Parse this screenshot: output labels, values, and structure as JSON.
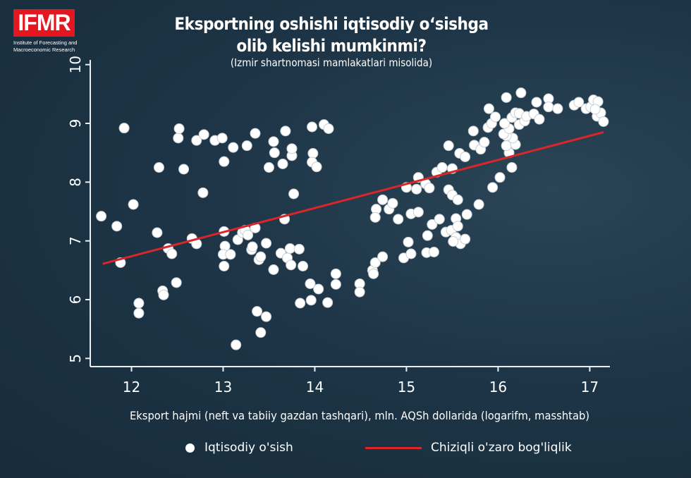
{
  "logo": {
    "text": "IFMR",
    "subtitle_line1": "Institute of Forecasting and",
    "subtitle_line2": "Macroeconomic Research",
    "color": "#e4161f"
  },
  "chart_data": {
    "type": "scatter",
    "title_line1": "Eksportning oshishi iqtisodiy o‘sishga",
    "title_line2": "olib kelishi mumkinmi?",
    "subtitle": "(Izmir shartnomasi mamlakatlari misolida)",
    "xlabel": "Eksport hajmi (neft va tabiiy gazdan tashqari), mln. AQSh dollarida (logarifm, masshtab)",
    "ylabel": "",
    "xlim": [
      11.55,
      17.22
    ],
    "ylim": [
      4.86,
      10.08
    ],
    "xticks": [
      "12",
      "13",
      "14",
      "15",
      "16",
      "17"
    ],
    "yticks": [
      "5",
      "6",
      "7",
      "8",
      "9",
      "10"
    ],
    "grid": false,
    "legend": {
      "placement": "bottom",
      "entries": [
        "Iqtisodiy o'sish",
        "Chiziqli o'zaro bog'liqlik"
      ]
    },
    "series": [
      {
        "name": "Iqtisodiy o'sish",
        "type": "scatter",
        "color": "#ffffff",
        "points": [
          [
            11.67,
            7.42
          ],
          [
            11.84,
            7.25
          ],
          [
            11.88,
            6.63
          ],
          [
            11.92,
            8.92
          ],
          [
            12.02,
            7.62
          ],
          [
            12.08,
            5.94
          ],
          [
            12.08,
            5.77
          ],
          [
            12.28,
            7.14
          ],
          [
            12.3,
            8.25
          ],
          [
            12.34,
            6.15
          ],
          [
            12.35,
            6.08
          ],
          [
            12.4,
            6.87
          ],
          [
            12.44,
            6.78
          ],
          [
            12.49,
            6.29
          ],
          [
            12.51,
            8.75
          ],
          [
            12.52,
            8.91
          ],
          [
            12.57,
            8.22
          ],
          [
            12.66,
            7.04
          ],
          [
            12.71,
            6.95
          ],
          [
            12.71,
            8.71
          ],
          [
            12.78,
            7.82
          ],
          [
            12.79,
            8.81
          ],
          [
            12.91,
            8.71
          ],
          [
            12.99,
            8.75
          ],
          [
            13.01,
            8.35
          ],
          [
            13.01,
            7.16
          ],
          [
            13.02,
            6.91
          ],
          [
            13.0,
            6.77
          ],
          [
            13.01,
            6.57
          ],
          [
            13.08,
            6.77
          ],
          [
            13.11,
            8.59
          ],
          [
            13.14,
            5.23
          ],
          [
            13.16,
            7.02
          ],
          [
            13.21,
            7.14
          ],
          [
            13.24,
            7.18
          ],
          [
            13.26,
            8.62
          ],
          [
            13.27,
            7.1
          ],
          [
            13.31,
            6.85
          ],
          [
            13.32,
            6.9
          ],
          [
            13.35,
            8.83
          ],
          [
            13.35,
            7.22
          ],
          [
            13.37,
            5.8
          ],
          [
            13.39,
            6.68
          ],
          [
            13.41,
            5.44
          ],
          [
            13.41,
            6.73
          ],
          [
            13.47,
            5.71
          ],
          [
            13.47,
            6.96
          ],
          [
            13.5,
            8.25
          ],
          [
            13.55,
            8.69
          ],
          [
            13.56,
            8.5
          ],
          [
            13.55,
            6.51
          ],
          [
            13.63,
            6.79
          ],
          [
            13.65,
            8.31
          ],
          [
            13.68,
            8.87
          ],
          [
            13.7,
            6.71
          ],
          [
            13.73,
            6.87
          ],
          [
            13.74,
            6.59
          ],
          [
            13.75,
            8.45
          ],
          [
            13.75,
            8.57
          ],
          [
            13.77,
            7.8
          ],
          [
            13.83,
            6.86
          ],
          [
            13.87,
            6.57
          ],
          [
            13.84,
            5.94
          ],
          [
            13.95,
            6.27
          ],
          [
            13.96,
            5.99
          ],
          [
            13.97,
            8.94
          ],
          [
            13.98,
            8.49
          ],
          [
            13.97,
            8.34
          ],
          [
            14.02,
            8.26
          ],
          [
            14.04,
            6.18
          ],
          [
            14.1,
            8.98
          ],
          [
            14.15,
            8.91
          ],
          [
            14.14,
            5.95
          ],
          [
            14.23,
            6.26
          ],
          [
            14.23,
            6.44
          ],
          [
            14.49,
            6.27
          ],
          [
            14.49,
            6.13
          ],
          [
            13.67,
            7.37
          ],
          [
            14.63,
            6.5
          ],
          [
            14.64,
            6.44
          ],
          [
            14.66,
            6.63
          ],
          [
            14.74,
            6.73
          ],
          [
            14.67,
            7.54
          ],
          [
            14.66,
            7.4
          ],
          [
            14.74,
            7.7
          ],
          [
            14.81,
            7.54
          ],
          [
            14.85,
            7.64
          ],
          [
            14.91,
            7.37
          ],
          [
            14.97,
            6.71
          ],
          [
            15.05,
            6.78
          ],
          [
            15.02,
            6.98
          ],
          [
            15.05,
            7.46
          ],
          [
            15.13,
            7.49
          ],
          [
            15.22,
            6.8
          ],
          [
            15.3,
            6.81
          ],
          [
            15.23,
            7.09
          ],
          [
            15.28,
            7.28
          ],
          [
            15.36,
            7.37
          ],
          [
            15.43,
            7.15
          ],
          [
            15.49,
            7.18
          ],
          [
            15.54,
            7.38
          ],
          [
            15.56,
            7.25
          ],
          [
            15.54,
            7.06
          ],
          [
            15.59,
            6.95
          ],
          [
            15.64,
            7.03
          ],
          [
            15.51,
            6.99
          ],
          [
            15.66,
            7.45
          ],
          [
            15.79,
            7.62
          ],
          [
            15.0,
            7.91
          ],
          [
            15.11,
            7.88
          ],
          [
            15.13,
            8.08
          ],
          [
            15.21,
            7.97
          ],
          [
            15.25,
            7.9
          ],
          [
            15.46,
            7.87
          ],
          [
            15.5,
            7.78
          ],
          [
            15.56,
            7.7
          ],
          [
            15.33,
            8.17
          ],
          [
            15.39,
            8.25
          ],
          [
            15.5,
            8.23
          ],
          [
            15.46,
            8.62
          ],
          [
            15.58,
            8.49
          ],
          [
            15.64,
            8.43
          ],
          [
            15.74,
            8.63
          ],
          [
            15.81,
            8.56
          ],
          [
            15.85,
            8.68
          ],
          [
            15.73,
            8.87
          ],
          [
            15.89,
            8.93
          ],
          [
            15.93,
            9.0
          ],
          [
            15.97,
            9.11
          ],
          [
            15.9,
            9.25
          ],
          [
            15.94,
            7.91
          ],
          [
            16.02,
            8.08
          ],
          [
            16.15,
            8.25
          ],
          [
            16.12,
            8.5
          ],
          [
            16.09,
            8.62
          ],
          [
            16.19,
            8.64
          ],
          [
            16.16,
            8.75
          ],
          [
            16.09,
            8.79
          ],
          [
            16.06,
            8.82
          ],
          [
            16.12,
            8.91
          ],
          [
            16.07,
            9.0
          ],
          [
            16.15,
            9.1
          ],
          [
            16.19,
            9.18
          ],
          [
            16.23,
            9.17
          ],
          [
            16.23,
            8.98
          ],
          [
            16.29,
            9.04
          ],
          [
            16.31,
            9.12
          ],
          [
            16.39,
            9.16
          ],
          [
            16.45,
            9.07
          ],
          [
            16.42,
            9.36
          ],
          [
            16.09,
            9.44
          ],
          [
            16.25,
            9.52
          ],
          [
            16.55,
            9.42
          ],
          [
            16.55,
            9.28
          ],
          [
            16.65,
            9.25
          ],
          [
            16.83,
            9.31
          ],
          [
            16.88,
            9.36
          ],
          [
            16.96,
            9.25
          ],
          [
            17.01,
            9.28
          ],
          [
            17.04,
            9.4
          ],
          [
            17.09,
            9.37
          ],
          [
            17.08,
            9.12
          ],
          [
            17.12,
            9.18
          ],
          [
            17.15,
            9.03
          ],
          [
            17.06,
            9.24
          ]
        ]
      },
      {
        "name": "Chiziqli o'zaro bog'liqlik",
        "type": "line",
        "color": "#d9262a",
        "points": [
          [
            11.685,
            6.61
          ],
          [
            17.15,
            8.85
          ]
        ]
      }
    ]
  }
}
